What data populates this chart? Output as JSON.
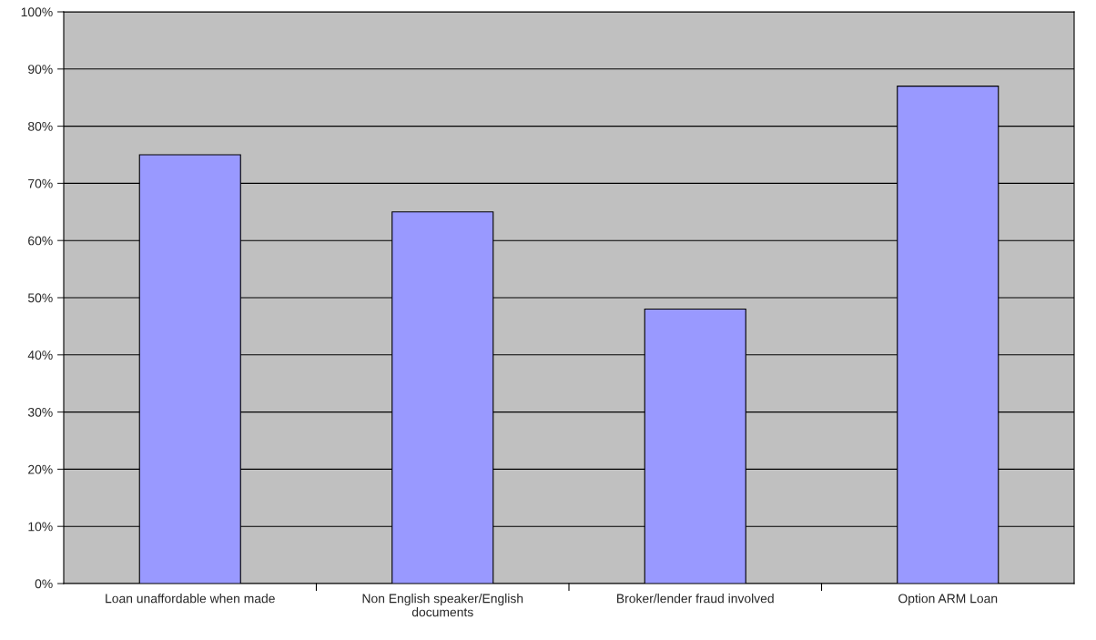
{
  "chart_data": {
    "type": "bar",
    "categories": [
      "Loan unaffordable when made",
      "Non English speaker/English documents",
      "Broker/lender fraud involved",
      "Option ARM Loan"
    ],
    "values": [
      75,
      65,
      48,
      87
    ],
    "color": "#9999ff",
    "ylim": [
      0,
      100
    ],
    "yticks": [
      {
        "value": 0,
        "label": "0%"
      },
      {
        "value": 10,
        "label": "10%"
      },
      {
        "value": 20,
        "label": "20%"
      },
      {
        "value": 30,
        "label": "30%"
      },
      {
        "value": 40,
        "label": "40%"
      },
      {
        "value": 50,
        "label": "50%"
      },
      {
        "value": 60,
        "label": "60%"
      },
      {
        "value": 70,
        "label": "70%"
      },
      {
        "value": 80,
        "label": "80%"
      },
      {
        "value": 90,
        "label": "90%"
      },
      {
        "value": 100,
        "label": "100%"
      }
    ],
    "grid": "y",
    "legend": false
  }
}
